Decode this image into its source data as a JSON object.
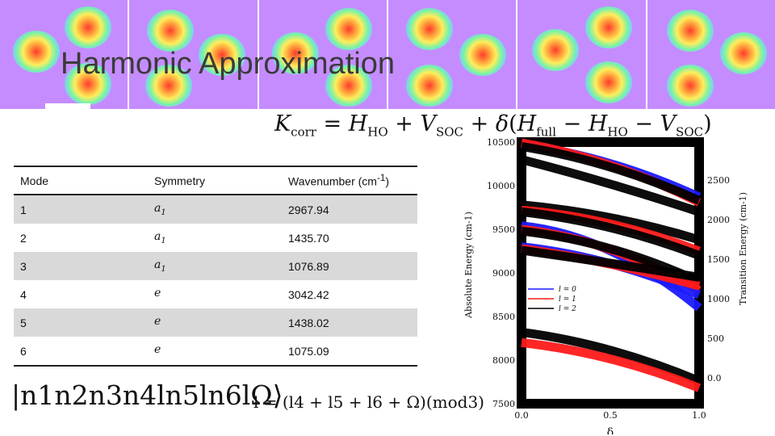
{
  "title": "Harmonic Approximation",
  "equation": {
    "lhs": "K",
    "lhs_sub": "corr",
    "rhs_parts": [
      "H",
      "HO",
      "V",
      "SOC",
      "δ",
      "H",
      "full",
      "H",
      "HO",
      "V",
      "SOC"
    ]
  },
  "table": {
    "headers": [
      "Mode",
      "Symmetry",
      "Wavenumber (cm",
      "-1",
      ")"
    ],
    "rows": [
      {
        "mode": "1",
        "sym": "a",
        "sym_sub": "1",
        "wn": "2967.94"
      },
      {
        "mode": "2",
        "sym": "a",
        "sym_sub": "1",
        "wn": "1435.70"
      },
      {
        "mode": "3",
        "sym": "a",
        "sym_sub": "1",
        "wn": "1076.89"
      },
      {
        "mode": "4",
        "sym": "e",
        "sym_sub": "",
        "wn": "3042.42"
      },
      {
        "mode": "5",
        "sym": "e",
        "sym_sub": "",
        "wn": "1438.02"
      },
      {
        "mode": "6",
        "sym": "e",
        "sym_sub": "",
        "wn": "1075.09"
      }
    ]
  },
  "ket_label": "|n1n2n3n4ln5ln6lΩ⟩",
  "mod_equation": "l = (l4 + l5 + l6 + Ω)(mod3)",
  "colors": {
    "banner": "#c58cff",
    "l0": "#1a1aff",
    "l1": "#ff1a1a",
    "l2": "#000000"
  },
  "chart_data": {
    "type": "line",
    "xlabel": "δ",
    "ylabel": "Absolute Energy (cm-1)",
    "y2label": "Transition Energy (cm-1)",
    "x_ticks": [
      "0.0",
      "0.5",
      "1.0"
    ],
    "y_ticks": [
      "7500",
      "8000",
      "8500",
      "9000",
      "9500",
      "10000",
      "10500"
    ],
    "y2_ticks": [
      "0.0",
      "500",
      "1000",
      "1500",
      "2000",
      "2500"
    ],
    "xlim": [
      0,
      1
    ],
    "ylim": [
      7500,
      10500
    ],
    "legend": [
      {
        "label": "l = 0",
        "color": "#1a1aff"
      },
      {
        "label": "l = 1",
        "color": "#ff1a1a"
      },
      {
        "label": "l = 2",
        "color": "#000000"
      }
    ],
    "series": [
      {
        "name": "l=0 band A",
        "color": "#1a1aff",
        "x": [
          0,
          0.5,
          1
        ],
        "y": [
          10470,
          10300,
          9870
        ]
      },
      {
        "name": "l=1 band A",
        "color": "#ff1a1a",
        "x": [
          0,
          0.5,
          1
        ],
        "y": [
          10490,
          10280,
          9810
        ]
      },
      {
        "name": "l=2 band A",
        "color": "#000000",
        "x": [
          0,
          0.5,
          1
        ],
        "y": [
          10450,
          10250,
          9830
        ]
      },
      {
        "name": "l=2 band B",
        "color": "#000000",
        "x": [
          0,
          0.5,
          1
        ],
        "y": [
          10300,
          10000,
          9700
        ]
      },
      {
        "name": "l=2 band C",
        "color": "#000000",
        "x": [
          0,
          0.5,
          1
        ],
        "y": [
          9780,
          9650,
          9380
        ]
      },
      {
        "name": "l=1 band C",
        "color": "#ff1a1a",
        "x": [
          0,
          0.5,
          1
        ],
        "y": [
          9720,
          9600,
          9250
        ]
      },
      {
        "name": "l=2 band D",
        "color": "#000000",
        "x": [
          0,
          0.5,
          1
        ],
        "y": [
          9700,
          9550,
          9200
        ]
      },
      {
        "name": "l=0 band D",
        "color": "#1a1aff",
        "x": [
          0,
          0.5,
          1
        ],
        "y": [
          9540,
          9400,
          8600
        ]
      },
      {
        "name": "l=1 band D",
        "color": "#ff1a1a",
        "x": [
          0,
          0.5,
          1
        ],
        "y": [
          9500,
          9350,
          8800
        ]
      },
      {
        "name": "l=2 band E",
        "color": "#000000",
        "x": [
          0,
          0.5,
          1
        ],
        "y": [
          9480,
          9330,
          8900
        ]
      },
      {
        "name": "l=0 band E",
        "color": "#1a1aff",
        "x": [
          0,
          0.5,
          1
        ],
        "y": [
          9300,
          9150,
          8750
        ]
      },
      {
        "name": "l=1 band E",
        "color": "#ff1a1a",
        "x": [
          0,
          0.5,
          1
        ],
        "y": [
          9280,
          9100,
          8850
        ]
      },
      {
        "name": "l=2 band F",
        "color": "#000000",
        "x": [
          0,
          0.5,
          1
        ],
        "y": [
          9260,
          9080,
          8950
        ]
      },
      {
        "name": "l=2 band G",
        "color": "#000000",
        "x": [
          0,
          0.5,
          1
        ],
        "y": [
          8320,
          8150,
          7760
        ]
      },
      {
        "name": "l=1 band G",
        "color": "#ff1a1a",
        "x": [
          0,
          0.5,
          1
        ],
        "y": [
          8200,
          8050,
          7680
        ]
      }
    ]
  }
}
